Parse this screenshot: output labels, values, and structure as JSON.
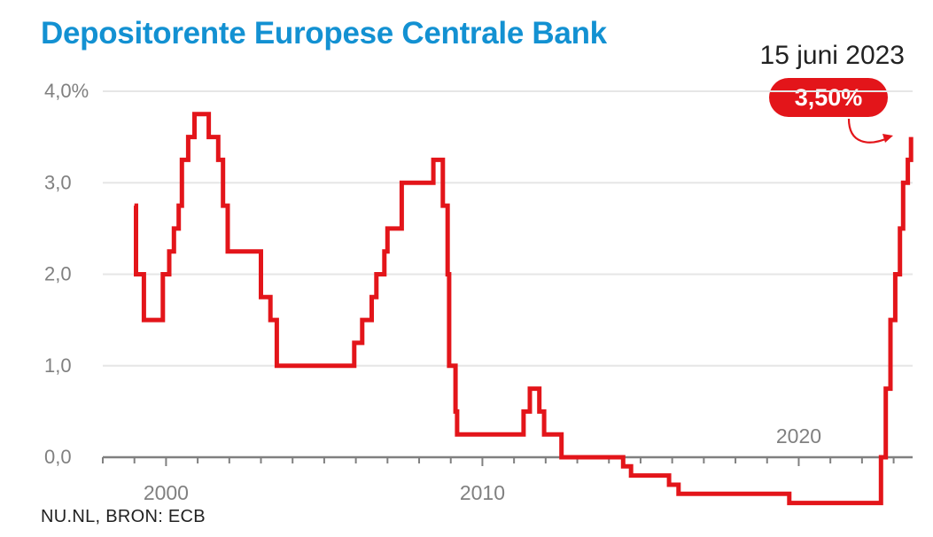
{
  "header": {
    "title": "Depositorente Europese Centrale Bank",
    "source": "NU.NL, BRON: ECB"
  },
  "annotation": {
    "date": "15 juni 2023",
    "value": "3,50%",
    "color": "#e3151a"
  },
  "colors": {
    "title": "#1391d2",
    "line": "#e3151a",
    "grid": "#e6e6e6",
    "axis": "#808080"
  },
  "chart_data": {
    "type": "line",
    "title": "Depositorente Europese Centrale Bank",
    "xlabel": "",
    "ylabel": "",
    "ylim": [
      0,
      4
    ],
    "xlim": [
      1998,
      2023.5
    ],
    "y_ticks": [
      0,
      1,
      2,
      3,
      4
    ],
    "y_tick_labels": [
      "0,0",
      "1,0",
      "2,0",
      "3,0",
      "4,0%"
    ],
    "x_tick_labels": [
      {
        "year": 2000,
        "label": "2000",
        "position": "below"
      },
      {
        "year": 2010,
        "label": "2010",
        "position": "below"
      },
      {
        "year": 2020,
        "label": "2020",
        "position": "above"
      }
    ],
    "grid": true,
    "step": true,
    "series": [
      {
        "color": "#e3151a",
        "x": [
          1999.0,
          1999.05,
          1999.3,
          1999.9,
          2000.1,
          2000.25,
          2000.4,
          2000.5,
          2000.7,
          2000.9,
          2001.35,
          2001.65,
          2001.8,
          2001.95,
          2003.0,
          2003.3,
          2003.5,
          2005.95,
          2006.2,
          2006.5,
          2006.65,
          2006.9,
          2007.0,
          2007.45,
          2008.45,
          2008.75,
          2008.9,
          2008.95,
          2009.15,
          2009.2,
          2009.35,
          2011.3,
          2011.5,
          2011.8,
          2011.95,
          2012.5,
          2014.45,
          2014.7,
          2015.9,
          2016.2,
          2019.7,
          2022.6,
          2022.75,
          2022.9,
          2023.05,
          2023.2,
          2023.3,
          2023.45
        ],
        "y": [
          2.75,
          2.0,
          1.5,
          2.0,
          2.25,
          2.5,
          2.75,
          3.25,
          3.5,
          3.75,
          3.5,
          3.25,
          2.75,
          2.25,
          1.75,
          1.5,
          1.0,
          1.25,
          1.5,
          1.75,
          2.0,
          2.25,
          2.5,
          3.0,
          3.25,
          2.75,
          2.0,
          1.0,
          0.5,
          0.25,
          0.25,
          0.5,
          0.75,
          0.5,
          0.25,
          0.0,
          -0.1,
          -0.2,
          -0.3,
          -0.4,
          -0.5,
          0.0,
          0.75,
          1.5,
          2.0,
          2.5,
          3.0,
          3.25
        ],
        "end": [
          2023.55,
          3.5
        ]
      }
    ]
  }
}
